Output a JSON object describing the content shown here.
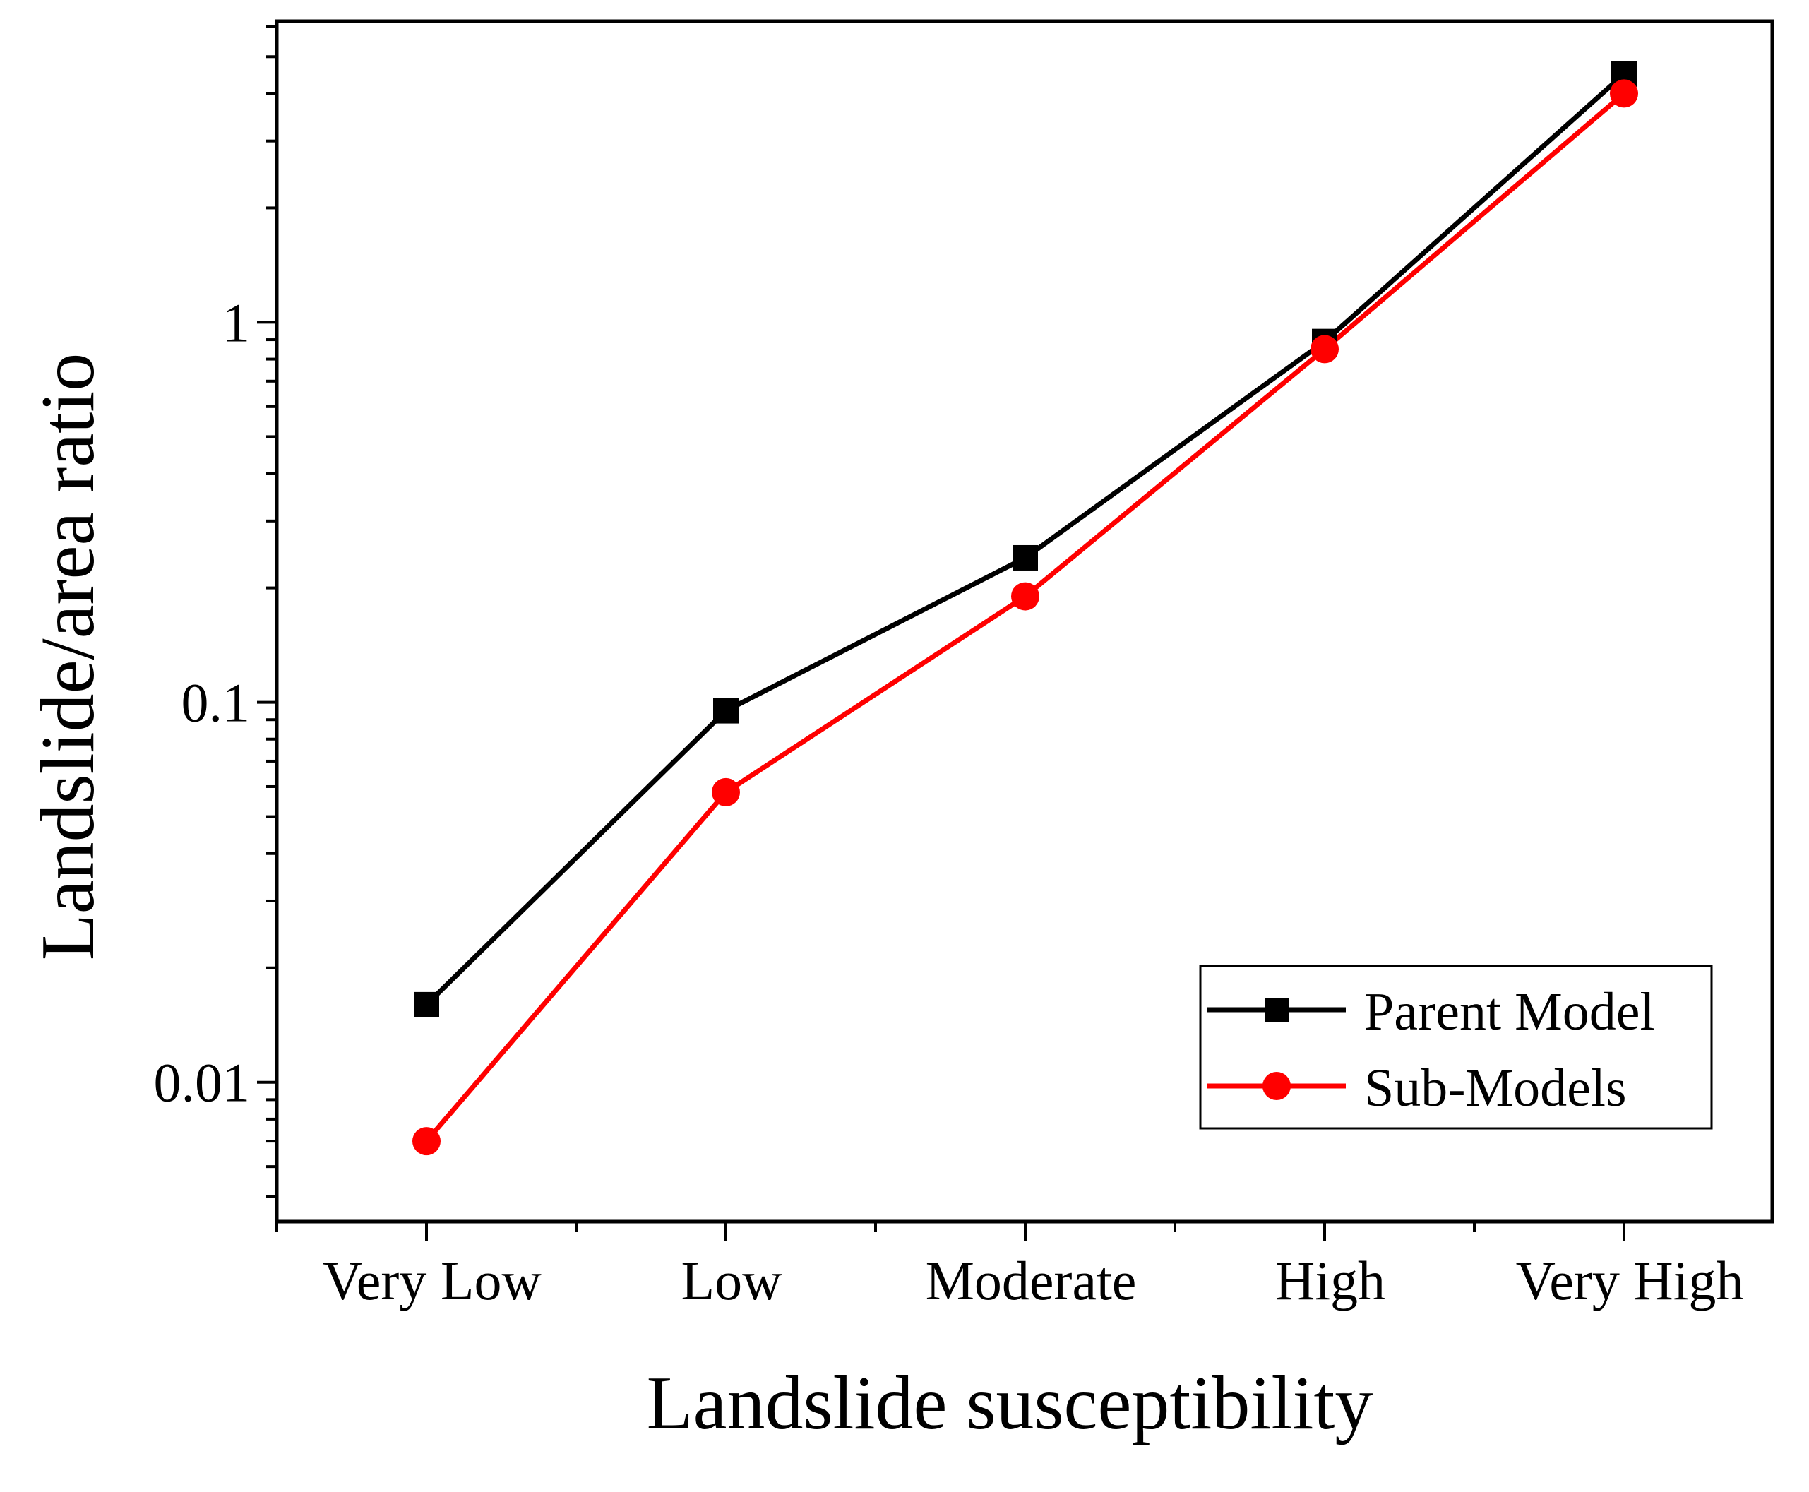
{
  "chart_data": {
    "type": "line",
    "title": "",
    "xlabel": "Landslide susceptibility",
    "ylabel": "Landslide/area ratio",
    "yscale": "log",
    "ylim": [
      0.0043,
      6.2
    ],
    "categories": [
      "Very Low",
      "Low",
      "Moderate",
      "High",
      "Very High"
    ],
    "yticks": [
      {
        "value": 0.01,
        "label": "0.01"
      },
      {
        "value": 0.1,
        "label": "0.1"
      },
      {
        "value": 1,
        "label": "1"
      }
    ],
    "series": [
      {
        "name": "Parent Model",
        "marker": "square",
        "color": "#000000",
        "values": [
          0.016,
          0.095,
          0.24,
          0.89,
          4.5
        ]
      },
      {
        "name": "Sub-Models",
        "marker": "circle",
        "color": "#ff0000",
        "values": [
          0.007,
          0.058,
          0.19,
          0.85,
          4.0
        ]
      }
    ],
    "legend": {
      "position": "bottom-right"
    },
    "grid": false
  }
}
